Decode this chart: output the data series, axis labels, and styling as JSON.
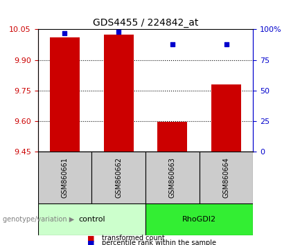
{
  "title": "GDS4455 / 224842_at",
  "categories": [
    "GSM860661",
    "GSM860662",
    "GSM860663",
    "GSM860664"
  ],
  "red_values": [
    10.01,
    10.025,
    9.598,
    9.78
  ],
  "blue_percentiles": [
    97,
    98,
    88,
    88
  ],
  "ylim_left": [
    9.45,
    10.05
  ],
  "ylim_right": [
    0,
    100
  ],
  "yticks_left": [
    9.45,
    9.6,
    9.75,
    9.9,
    10.05
  ],
  "yticks_right": [
    0,
    25,
    50,
    75,
    100
  ],
  "ytick_labels_right": [
    "0",
    "25",
    "50",
    "75",
    "100%"
  ],
  "left_axis_color": "#cc0000",
  "right_axis_color": "#0000cc",
  "bar_color": "#cc0000",
  "marker_color": "#0000cc",
  "group_labels": [
    "control",
    "RhoGDI2"
  ],
  "group_ranges": [
    [
      0,
      2
    ],
    [
      2,
      4
    ]
  ],
  "group_colors": [
    "#ccffcc",
    "#33ee33"
  ],
  "legend_items": [
    "transformed count",
    "percentile rank within the sample"
  ],
  "legend_colors": [
    "#cc0000",
    "#0000cc"
  ],
  "genotype_label": "genotype/variation",
  "plot_bg_color": "#ffffff",
  "sample_label_bg": "#cccccc",
  "bar_width": 0.55
}
